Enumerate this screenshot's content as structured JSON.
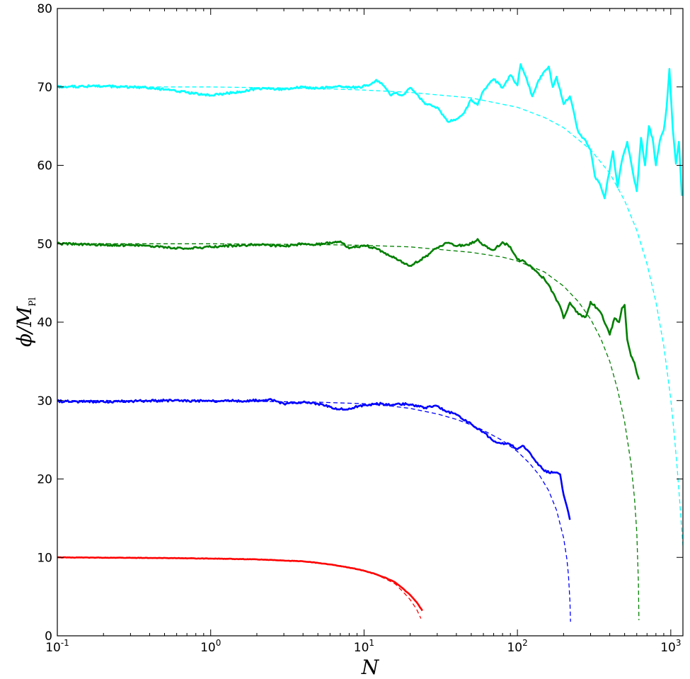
{
  "chart_data": {
    "type": "line",
    "title": "",
    "xlabel": "N",
    "ylabel": {
      "main": "ϕ/M",
      "sub": "Pl"
    },
    "xscale": "log",
    "xlim": [
      0.1,
      1200
    ],
    "ylim": [
      0,
      80
    ],
    "grid": false,
    "legend": "none",
    "x_ticks": [
      {
        "base": "10",
        "exp": "-1",
        "value": 0.1
      },
      {
        "base": "10",
        "exp": "0",
        "value": 1
      },
      {
        "base": "10",
        "exp": "1",
        "value": 10
      },
      {
        "base": "10",
        "exp": "2",
        "value": 100
      },
      {
        "base": "10",
        "exp": "3",
        "value": 1000
      }
    ],
    "y_ticks": [
      "0",
      "10",
      "20",
      "30",
      "40",
      "50",
      "60",
      "70",
      "80"
    ],
    "series": [
      {
        "color": "#ff0000",
        "style": "solid",
        "x": [
          0.1,
          0.3,
          0.6,
          1,
          2,
          3,
          4,
          5,
          6,
          7,
          8,
          9,
          10,
          12,
          14,
          16,
          18,
          20,
          22,
          24
        ],
        "y": [
          10.0,
          9.95,
          9.9,
          9.85,
          9.75,
          9.6,
          9.5,
          9.3,
          9.1,
          8.9,
          8.7,
          8.5,
          8.3,
          7.85,
          7.35,
          6.8,
          6.0,
          5.2,
          4.3,
          3.2
        ]
      },
      {
        "color": "#ff0000",
        "style": "dashed",
        "x": [
          0.1,
          0.3,
          0.6,
          1,
          2,
          3,
          4,
          5,
          6,
          7,
          8,
          9,
          10,
          12,
          14,
          16,
          18,
          20,
          22,
          23.5
        ],
        "y": [
          10.0,
          9.95,
          9.9,
          9.85,
          9.75,
          9.6,
          9.5,
          9.3,
          9.1,
          8.9,
          8.7,
          8.5,
          8.3,
          7.8,
          7.2,
          6.6,
          5.6,
          4.6,
          3.4,
          2.2
        ]
      },
      {
        "color": "#0000ff",
        "style": "solid",
        "x": [
          0.1,
          0.2,
          0.5,
          1,
          2,
          2.5,
          3,
          4,
          5,
          6,
          7,
          8,
          10,
          13,
          15,
          17,
          20,
          25,
          30,
          35,
          40,
          50,
          60,
          70,
          80,
          90,
          100,
          110,
          120,
          130,
          150,
          170,
          190,
          200,
          210,
          220
        ],
        "y": [
          29.9,
          29.85,
          30.0,
          29.95,
          30.0,
          30.1,
          29.6,
          29.8,
          29.6,
          29.2,
          28.9,
          29.0,
          29.4,
          29.6,
          29.4,
          29.6,
          29.5,
          29.1,
          29.3,
          28.6,
          28.2,
          27.0,
          26.0,
          24.8,
          24.6,
          24.4,
          23.8,
          24.2,
          23.4,
          22.4,
          21.0,
          20.8,
          20.6,
          18.0,
          16.5,
          14.8
        ]
      },
      {
        "color": "#0000ff",
        "style": "dashed",
        "x": [
          0.1,
          0.5,
          1,
          2,
          5,
          10,
          15,
          20,
          30,
          40,
          50,
          60,
          80,
          100,
          120,
          140,
          160,
          180,
          200,
          210,
          215,
          220,
          222
        ],
        "y": [
          30.0,
          30.0,
          30.0,
          29.9,
          29.8,
          29.6,
          29.3,
          29.0,
          28.3,
          27.6,
          26.9,
          26.2,
          24.9,
          23.5,
          22.0,
          20.4,
          18.5,
          16.0,
          12.5,
          9.8,
          7.8,
          4.5,
          1.8
        ]
      },
      {
        "color": "#007f00",
        "style": "solid",
        "x": [
          0.1,
          0.3,
          0.7,
          1,
          2,
          3,
          4,
          5,
          7,
          8,
          10,
          12,
          15,
          18,
          20,
          25,
          30,
          35,
          40,
          50,
          55,
          60,
          70,
          80,
          90,
          100,
          110,
          130,
          150,
          170,
          190,
          200,
          220,
          250,
          280,
          300,
          330,
          350,
          380,
          400,
          430,
          460,
          480,
          500,
          520,
          550,
          580,
          600,
          620
        ],
        "y": [
          50.0,
          49.8,
          49.4,
          49.6,
          49.9,
          49.7,
          50.0,
          49.9,
          50.3,
          49.4,
          49.8,
          49.4,
          48.4,
          47.6,
          47.2,
          48.3,
          49.5,
          50.1,
          49.7,
          50.0,
          50.6,
          49.8,
          49.2,
          50.2,
          49.6,
          48.0,
          47.8,
          46.6,
          45.5,
          43.8,
          42.0,
          40.5,
          42.5,
          41.0,
          40.7,
          42.6,
          41.8,
          41.2,
          39.5,
          38.4,
          40.5,
          40.0,
          41.8,
          42.2,
          37.8,
          35.7,
          34.8,
          33.5,
          32.7
        ]
      },
      {
        "color": "#007f00",
        "style": "dashed",
        "x": [
          0.1,
          1,
          5,
          10,
          20,
          50,
          80,
          100,
          150,
          200,
          250,
          300,
          350,
          400,
          450,
          500,
          550,
          580,
          600,
          615,
          620
        ],
        "y": [
          50.0,
          50.0,
          49.9,
          49.8,
          49.6,
          48.9,
          48.3,
          47.8,
          46.4,
          44.6,
          42.6,
          40.4,
          37.9,
          35.0,
          31.4,
          27.3,
          22.0,
          17.5,
          13.2,
          6.8,
          2.0
        ]
      },
      {
        "color": "#00ffff",
        "style": "solid",
        "x": [
          0.1,
          0.2,
          0.4,
          0.7,
          1,
          1.3,
          1.6,
          2,
          3,
          4,
          5,
          7,
          9,
          11,
          12,
          13,
          14,
          15,
          16,
          18,
          20,
          22,
          25,
          30,
          35,
          40,
          45,
          50,
          55,
          60,
          70,
          80,
          90,
          100,
          105,
          115,
          125,
          135,
          150,
          160,
          170,
          180,
          200,
          220,
          250,
          280,
          300,
          320,
          350,
          370,
          390,
          420,
          450,
          480,
          520,
          560,
          600,
          640,
          680,
          720,
          760,
          800,
          850,
          900,
          940,
          980,
          1030,
          1080,
          1130,
          1180,
          1200
        ],
        "y": [
          70.0,
          70.1,
          69.9,
          69.3,
          68.9,
          69.2,
          69.4,
          69.8,
          69.7,
          70.0,
          69.8,
          70.1,
          69.9,
          70.3,
          70.9,
          70.5,
          69.7,
          68.9,
          69.2,
          69.0,
          69.9,
          69.1,
          67.8,
          67.4,
          65.6,
          65.9,
          66.7,
          68.4,
          67.7,
          69.5,
          71.0,
          69.9,
          71.5,
          70.2,
          72.9,
          71.0,
          68.8,
          70.5,
          72.0,
          72.6,
          70.0,
          71.3,
          67.8,
          68.8,
          64.2,
          63.1,
          62.0,
          58.6,
          57.3,
          55.8,
          58.4,
          61.8,
          57.2,
          60.6,
          63.0,
          59.6,
          56.7,
          63.5,
          60.0,
          65.0,
          63.5,
          60.0,
          63.2,
          64.5,
          67.5,
          72.3,
          64.7,
          60.2,
          63.0,
          56.2,
          56.3
        ]
      },
      {
        "color": "#00ffff",
        "style": "dashed",
        "x": [
          0.4,
          1,
          5,
          10,
          20,
          50,
          100,
          150,
          200,
          300,
          400,
          500,
          600,
          700,
          800,
          900,
          1000,
          1050,
          1100,
          1150,
          1200
        ],
        "y": [
          70.0,
          70.0,
          69.8,
          69.6,
          69.3,
          68.6,
          67.4,
          66.1,
          64.8,
          62.0,
          59.0,
          55.5,
          51.7,
          47.4,
          42.6,
          37.0,
          30.2,
          26.0,
          21.5,
          16.5,
          11.5
        ]
      }
    ]
  }
}
